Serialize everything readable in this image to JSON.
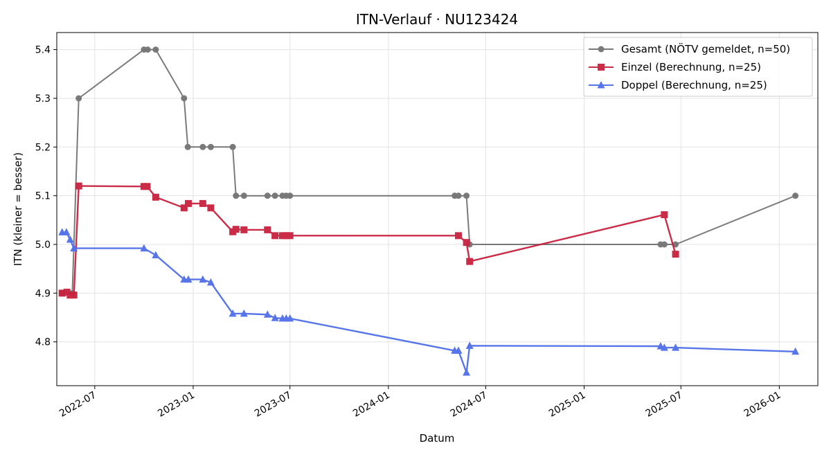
{
  "chart_data": {
    "type": "line",
    "title": "ITN-Verlauf · NU123424",
    "xlabel": "Datum",
    "ylabel": "ITN  (kleiner = besser)",
    "x_ticks": [
      "2022-07",
      "2023-01",
      "2023-07",
      "2024-01",
      "2024-07",
      "2025-01",
      "2025-07",
      "2026-01"
    ],
    "y_ticks": [
      "4.8",
      "4.9",
      "5.0",
      "5.1",
      "5.2",
      "5.3",
      "5.4"
    ],
    "ylim": [
      4.71,
      5.435
    ],
    "xlim": [
      "2022-04-21",
      "2026-03-14"
    ],
    "grid": true,
    "legend_position": "top-right",
    "series": [
      {
        "name": "Gesamt (NÖTV gemeldet, n=50)",
        "color": "#555555",
        "marker": "circle",
        "points": [
          {
            "x": "2022-05-01",
            "y": 4.9
          },
          {
            "x": "2022-05-20",
            "y": 4.9
          },
          {
            "x": "2022-06-01",
            "y": 5.3
          },
          {
            "x": "2022-10-01",
            "y": 5.4
          },
          {
            "x": "2022-10-08",
            "y": 5.4
          },
          {
            "x": "2022-10-23",
            "y": 5.4
          },
          {
            "x": "2022-12-15",
            "y": 5.3
          },
          {
            "x": "2022-12-22",
            "y": 5.2
          },
          {
            "x": "2023-01-19",
            "y": 5.2
          },
          {
            "x": "2023-02-03",
            "y": 5.2
          },
          {
            "x": "2023-03-16",
            "y": 5.2
          },
          {
            "x": "2023-03-22",
            "y": 5.1
          },
          {
            "x": "2023-04-06",
            "y": 5.1
          },
          {
            "x": "2023-05-20",
            "y": 5.1
          },
          {
            "x": "2023-06-03",
            "y": 5.1
          },
          {
            "x": "2023-06-17",
            "y": 5.1
          },
          {
            "x": "2023-06-24",
            "y": 5.1
          },
          {
            "x": "2023-07-01",
            "y": 5.1
          },
          {
            "x": "2024-05-04",
            "y": 5.1
          },
          {
            "x": "2024-05-11",
            "y": 5.1
          },
          {
            "x": "2024-05-26",
            "y": 5.1
          },
          {
            "x": "2024-06-01",
            "y": 5.0
          },
          {
            "x": "2025-05-24",
            "y": 5.0
          },
          {
            "x": "2025-05-31",
            "y": 5.0
          },
          {
            "x": "2025-06-21",
            "y": 5.0
          },
          {
            "x": "2026-01-31",
            "y": 5.1
          }
        ]
      },
      {
        "name": "Einzel (Berechnung, n=25)",
        "color": "#c8213f",
        "marker": "square",
        "points": [
          {
            "x": "2022-05-01",
            "y": 4.9
          },
          {
            "x": "2022-05-10",
            "y": 4.902
          },
          {
            "x": "2022-05-16",
            "y": 4.896
          },
          {
            "x": "2022-05-23",
            "y": 4.896
          },
          {
            "x": "2022-06-01",
            "y": 5.12
          },
          {
            "x": "2022-10-01",
            "y": 5.119
          },
          {
            "x": "2022-10-07",
            "y": 5.119
          },
          {
            "x": "2022-10-23",
            "y": 5.097
          },
          {
            "x": "2022-12-15",
            "y": 5.075
          },
          {
            "x": "2022-12-23",
            "y": 5.084
          },
          {
            "x": "2023-01-19",
            "y": 5.084
          },
          {
            "x": "2023-02-03",
            "y": 5.075
          },
          {
            "x": "2023-03-16",
            "y": 5.026
          },
          {
            "x": "2023-03-22",
            "y": 5.031
          },
          {
            "x": "2023-04-06",
            "y": 5.03
          },
          {
            "x": "2023-05-20",
            "y": 5.03
          },
          {
            "x": "2023-06-03",
            "y": 5.018
          },
          {
            "x": "2023-06-17",
            "y": 5.018
          },
          {
            "x": "2023-06-24",
            "y": 5.018
          },
          {
            "x": "2023-07-01",
            "y": 5.018
          },
          {
            "x": "2024-05-11",
            "y": 5.018
          },
          {
            "x": "2024-05-26",
            "y": 5.004
          },
          {
            "x": "2024-06-01",
            "y": 4.965
          },
          {
            "x": "2025-05-31",
            "y": 5.061
          },
          {
            "x": "2025-06-21",
            "y": 4.98
          }
        ]
      },
      {
        "name": "Doppel (Berechnung, n=25)",
        "color": "#4f6ee8",
        "marker": "triangle",
        "points": [
          {
            "x": "2022-05-01",
            "y": 5.025
          },
          {
            "x": "2022-05-09",
            "y": 5.025
          },
          {
            "x": "2022-05-16",
            "y": 5.01
          },
          {
            "x": "2022-05-23",
            "y": 4.992
          },
          {
            "x": "2022-10-01",
            "y": 4.992
          },
          {
            "x": "2022-10-23",
            "y": 4.978
          },
          {
            "x": "2022-12-15",
            "y": 4.928
          },
          {
            "x": "2022-12-23",
            "y": 4.928
          },
          {
            "x": "2023-01-19",
            "y": 4.928
          },
          {
            "x": "2023-02-03",
            "y": 4.922
          },
          {
            "x": "2023-03-16",
            "y": 4.858
          },
          {
            "x": "2023-04-06",
            "y": 4.858
          },
          {
            "x": "2023-05-20",
            "y": 4.856
          },
          {
            "x": "2023-06-03",
            "y": 4.849
          },
          {
            "x": "2023-06-17",
            "y": 4.848
          },
          {
            "x": "2023-06-24",
            "y": 4.848
          },
          {
            "x": "2023-07-01",
            "y": 4.848
          },
          {
            "x": "2024-05-04",
            "y": 4.782
          },
          {
            "x": "2024-05-11",
            "y": 4.782
          },
          {
            "x": "2024-05-26",
            "y": 4.737
          },
          {
            "x": "2024-06-01",
            "y": 4.792
          },
          {
            "x": "2025-05-24",
            "y": 4.791
          },
          {
            "x": "2025-05-31",
            "y": 4.788
          },
          {
            "x": "2025-06-21",
            "y": 4.788
          },
          {
            "x": "2026-01-31",
            "y": 4.78
          }
        ]
      }
    ]
  }
}
